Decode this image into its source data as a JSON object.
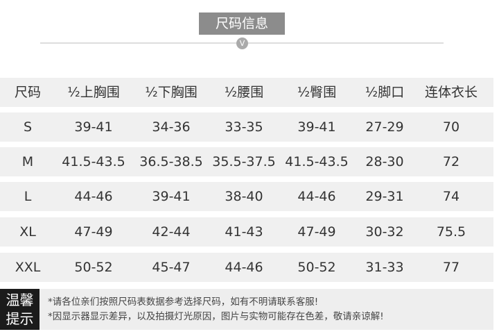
{
  "title": "尺码信息",
  "divider_glyph": "V",
  "table": {
    "headers": [
      "尺码",
      "½上胸围",
      "½下胸围",
      "½腰围",
      "½臀围",
      "½脚口",
      "连体衣长"
    ],
    "rows": [
      [
        "S",
        "39-41",
        "34-36",
        "33-35",
        "39-41",
        "27-29",
        "70"
      ],
      [
        "M",
        "41.5-43.5",
        "36.5-38.5",
        "35.5-37.5",
        "41.5-43.5",
        "28-30",
        "72"
      ],
      [
        "L",
        "44-46",
        "39-41",
        "38-40",
        "44-46",
        "29-31",
        "74"
      ],
      [
        "XL",
        "47-49",
        "42-44",
        "41-43",
        "47-49",
        "30-32",
        "75.5"
      ],
      [
        "XXL",
        "50-52",
        "45-47",
        "44-46",
        "50-52",
        "31-33",
        "77"
      ]
    ]
  },
  "notice": {
    "label_line1": "温馨",
    "label_line2": "提示",
    "lines": [
      "*请各位亲们按照尺码表数据参考选择尺码，如有不明请联系客服!",
      "*因显示器显示差异，以及拍摄灯光原因，图片与实物可能存在色差，敬请亲谅解!"
    ]
  }
}
